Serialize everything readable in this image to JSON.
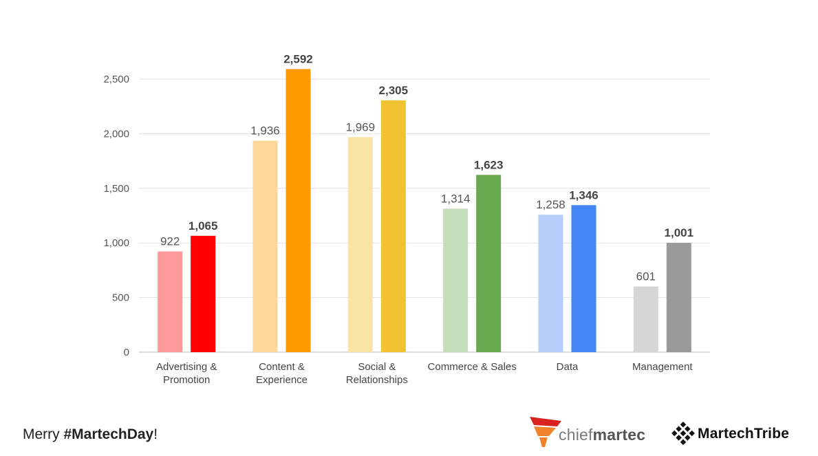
{
  "chart_data": {
    "type": "bar",
    "categories": [
      [
        "Advertising &",
        "Promotion"
      ],
      [
        "Content &",
        "Experience"
      ],
      [
        "Social &",
        "Relationships"
      ],
      [
        "Commerce & Sales"
      ],
      [
        "Data"
      ],
      [
        "Management"
      ]
    ],
    "series": [
      {
        "values": [
          922,
          1936,
          1969,
          1314,
          1258,
          601
        ],
        "colors": [
          "#ff9a9a",
          "#fdd699",
          "#f9e3a5",
          "#c4ddbb",
          "#b4cffa",
          "#d6d6d6"
        ],
        "labels": [
          "922",
          "1,936",
          "1,969",
          "1,314",
          "1,258",
          "601"
        ]
      },
      {
        "values": [
          1065,
          2592,
          2305,
          1623,
          1346,
          1001
        ],
        "colors": [
          "#ff0000",
          "#ff9900",
          "#f1c232",
          "#6aa84f",
          "#4285f4",
          "#999999"
        ],
        "labels": [
          "1,065",
          "2,592",
          "2,305",
          "1,623",
          "1,346",
          "1,001"
        ]
      }
    ],
    "ylim": [
      0,
      2500
    ],
    "yticks": [
      0,
      500,
      1000,
      1500,
      2000,
      2500
    ],
    "ytick_labels": [
      "0",
      "500",
      "1,000",
      "1,500",
      "2,000",
      "2,500"
    ],
    "grid": true
  },
  "footer": {
    "prefix": "Merry ",
    "hashtag": "#MartechDay",
    "suffix": "!"
  },
  "logos": {
    "chiefmartec": {
      "part1": "chief",
      "part2": "martec",
      "colors": [
        "#d9231f",
        "#f0822b"
      ]
    },
    "martechtribe": {
      "text": "MartechTribe",
      "icon": "diamond-grid-icon"
    }
  }
}
